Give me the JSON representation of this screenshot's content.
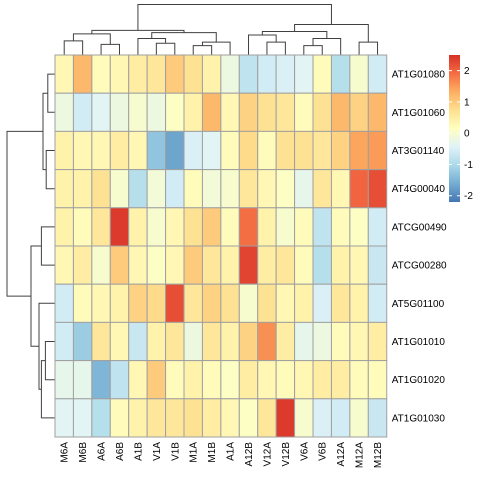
{
  "chart_data": {
    "type": "heatmap",
    "title": "",
    "xlabel": "",
    "ylabel": "",
    "columns": [
      "M6A",
      "M6B",
      "A6A",
      "A6B",
      "A1B",
      "V1A",
      "V1B",
      "M1A",
      "M1B",
      "A1A",
      "A12B",
      "V12A",
      "V12B",
      "V6A",
      "V6B",
      "A12A",
      "M12A",
      "M12B"
    ],
    "rows": [
      "AT1G01080",
      "AT1G01060",
      "AT3G01140",
      "AT4G00040",
      "ATCG00490",
      "ATCG00280",
      "AT5G01100",
      "AT1G01010",
      "AT1G01020",
      "AT1G01030"
    ],
    "values": [
      [
        0.3,
        1.2,
        0.2,
        0.3,
        0.5,
        0.6,
        1.0,
        0.7,
        0.4,
        -0.2,
        -0.8,
        -0.6,
        -0.5,
        -0.4,
        0.2,
        -0.9,
        0.0,
        -0.6
      ],
      [
        -0.2,
        -0.6,
        -0.4,
        -0.2,
        0.0,
        -0.2,
        0.1,
        0.4,
        1.2,
        0.3,
        0.9,
        0.7,
        0.6,
        0.2,
        0.7,
        1.2,
        0.9,
        1.2
      ],
      [
        0.4,
        0.3,
        0.3,
        0.5,
        0.3,
        -1.3,
        -1.7,
        -0.5,
        -0.4,
        0.2,
        0.8,
        0.2,
        0.7,
        0.7,
        0.6,
        0.9,
        1.4,
        1.5
      ],
      [
        0.4,
        0.4,
        0.7,
        0.0,
        -0.9,
        -0.1,
        -0.6,
        0.2,
        -0.1,
        0.0,
        0.6,
        0.3,
        0.1,
        -0.3,
        0.6,
        0.3,
        2.0,
        2.2
      ],
      [
        0.4,
        0.2,
        0.6,
        2.4,
        0.4,
        0.0,
        0.3,
        0.7,
        1.0,
        0.2,
        1.9,
        0.4,
        0.0,
        0.2,
        -0.8,
        0.2,
        0.1,
        -0.6
      ],
      [
        0.3,
        0.5,
        0.0,
        1.0,
        0.3,
        0.1,
        0.3,
        1.0,
        0.6,
        0.4,
        2.3,
        0.5,
        0.6,
        0.2,
        -0.9,
        0.4,
        0.3,
        -0.7
      ],
      [
        -0.6,
        0.2,
        0.3,
        0.4,
        0.9,
        0.8,
        2.2,
        0.6,
        0.9,
        0.7,
        0.0,
        0.7,
        0.3,
        0.4,
        -0.5,
        0.6,
        0.4,
        -0.6
      ],
      [
        -0.6,
        -1.2,
        0.6,
        0.3,
        -0.7,
        0.4,
        0.6,
        -0.2,
        0.6,
        0.4,
        0.9,
        1.6,
        0.5,
        -0.3,
        -0.2,
        0.2,
        0.3,
        0.5
      ],
      [
        -0.3,
        -0.3,
        -1.5,
        -0.8,
        0.3,
        1.0,
        0.2,
        0.4,
        0.2,
        0.1,
        0.5,
        0.3,
        0.2,
        0.3,
        0.5,
        0.5,
        0.2,
        0.2
      ],
      [
        -0.4,
        -0.4,
        -0.9,
        0.2,
        0.4,
        0.6,
        0.6,
        0.7,
        0.5,
        0.3,
        0.1,
        0.6,
        2.4,
        0.0,
        -0.5,
        -0.6,
        0.0,
        -0.7
      ]
    ],
    "legend": {
      "ticks": [
        -2,
        -1,
        0,
        1,
        2
      ],
      "range": [
        -2.2,
        2.5
      ],
      "placement": "right",
      "colors": [
        "#4575b4",
        "#74add1",
        "#abd9e9",
        "#e0f3f8",
        "#ffffbf",
        "#fee090",
        "#fdae61",
        "#f46d43",
        "#d73027"
      ]
    },
    "grid_color": "#a0a0a0",
    "dendrogram_color": "#404040"
  }
}
